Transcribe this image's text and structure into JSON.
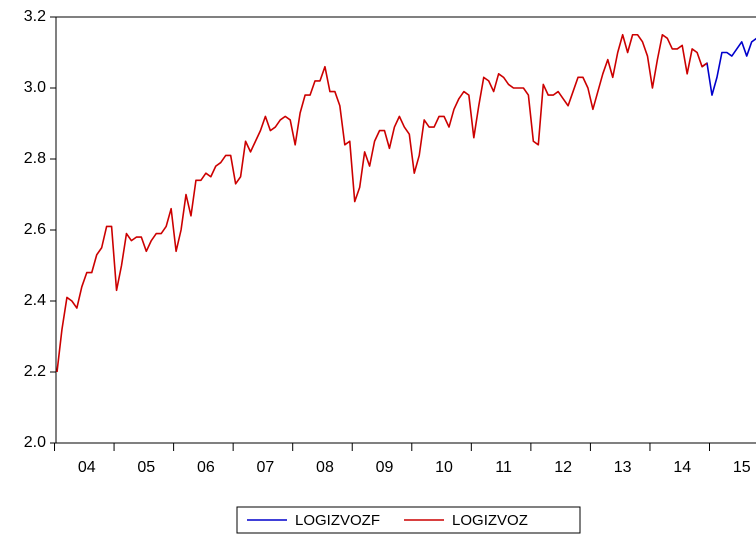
{
  "chart_data": {
    "type": "line",
    "categories": [
      null,
      null,
      null,
      null,
      null,
      null,
      "04",
      null,
      null,
      null,
      null,
      null,
      null,
      null,
      null,
      null,
      null,
      null,
      "05",
      null,
      null,
      null,
      null,
      null,
      null,
      null,
      null,
      null,
      null,
      null,
      "06",
      null,
      null,
      null,
      null,
      null,
      null,
      null,
      null,
      null,
      null,
      null,
      "07",
      null,
      null,
      null,
      null,
      null,
      null,
      null,
      null,
      null,
      null,
      null,
      "08",
      null,
      null,
      null,
      null,
      null,
      null,
      null,
      null,
      null,
      null,
      null,
      "09",
      null,
      null,
      null,
      null,
      null,
      null,
      null,
      null,
      null,
      null,
      null,
      "10",
      null,
      null,
      null,
      null,
      null,
      null,
      null,
      null,
      null,
      null,
      null,
      "11",
      null,
      null,
      null,
      null,
      null,
      null,
      null,
      null,
      null,
      null,
      null,
      "12",
      null,
      null,
      null,
      null,
      null,
      null,
      null,
      null,
      null,
      null,
      null,
      "13",
      null,
      null,
      null,
      null,
      null,
      null,
      null,
      null,
      null,
      null,
      null,
      "14",
      null,
      null,
      null,
      null,
      null,
      null,
      null,
      null,
      null,
      null,
      null,
      "15",
      null,
      null,
      null
    ],
    "series": [
      {
        "name": "LOGIZVOZF",
        "color": "#0000cc",
        "values": [
          null,
          null,
          null,
          null,
          null,
          null,
          null,
          null,
          null,
          null,
          null,
          null,
          null,
          null,
          null,
          null,
          null,
          null,
          null,
          null,
          null,
          null,
          null,
          null,
          null,
          null,
          null,
          null,
          null,
          null,
          null,
          null,
          null,
          null,
          null,
          null,
          null,
          null,
          null,
          null,
          null,
          null,
          null,
          null,
          null,
          null,
          null,
          null,
          null,
          null,
          null,
          null,
          null,
          null,
          null,
          null,
          null,
          null,
          null,
          null,
          null,
          null,
          null,
          null,
          null,
          null,
          null,
          null,
          null,
          null,
          null,
          null,
          null,
          null,
          null,
          null,
          null,
          null,
          null,
          null,
          null,
          null,
          null,
          null,
          null,
          null,
          null,
          null,
          null,
          null,
          null,
          null,
          null,
          null,
          null,
          null,
          null,
          null,
          null,
          null,
          null,
          null,
          null,
          null,
          null,
          null,
          null,
          null,
          null,
          null,
          null,
          null,
          null,
          null,
          null,
          null,
          null,
          null,
          null,
          null,
          null,
          null,
          null,
          null,
          null,
          null,
          null,
          null,
          null,
          null,
          3.06,
          3.07,
          2.98,
          3.03,
          3.1,
          3.1,
          3.09,
          3.11,
          3.13,
          3.09,
          3.13,
          3.14
        ]
      },
      {
        "name": "LOGIZVOZ",
        "color": "#cc0000",
        "values": [
          2.2,
          2.32,
          2.41,
          2.4,
          2.38,
          2.44,
          2.48,
          2.48,
          2.53,
          2.55,
          2.61,
          2.61,
          2.43,
          2.5,
          2.59,
          2.57,
          2.58,
          2.58,
          2.54,
          2.57,
          2.59,
          2.59,
          2.61,
          2.66,
          2.54,
          2.6,
          2.7,
          2.64,
          2.74,
          2.74,
          2.76,
          2.75,
          2.78,
          2.79,
          2.81,
          2.81,
          2.73,
          2.75,
          2.85,
          2.82,
          2.85,
          2.88,
          2.92,
          2.88,
          2.89,
          2.91,
          2.92,
          2.91,
          2.84,
          2.93,
          2.98,
          2.98,
          3.02,
          3.02,
          3.06,
          2.99,
          2.99,
          2.95,
          2.84,
          2.85,
          2.68,
          2.72,
          2.82,
          2.78,
          2.85,
          2.88,
          2.88,
          2.83,
          2.89,
          2.92,
          2.89,
          2.87,
          2.76,
          2.81,
          2.91,
          2.89,
          2.89,
          2.92,
          2.92,
          2.89,
          2.94,
          2.97,
          2.99,
          2.98,
          2.86,
          2.95,
          3.03,
          3.02,
          2.99,
          3.04,
          3.03,
          3.01,
          3.0,
          3.0,
          3.0,
          2.98,
          2.85,
          2.84,
          3.01,
          2.98,
          2.98,
          2.99,
          2.97,
          2.95,
          2.99,
          3.03,
          3.03,
          3.0,
          2.94,
          2.99,
          3.04,
          3.08,
          3.03,
          3.1,
          3.15,
          3.1,
          3.15,
          3.15,
          3.13,
          3.09,
          3.0,
          3.08,
          3.15,
          3.14,
          3.11,
          3.11,
          3.12,
          3.04,
          3.11,
          3.1,
          3.06,
          3.07,
          null,
          null,
          null,
          null,
          null,
          null,
          null,
          null,
          null,
          null
        ]
      }
    ],
    "ylim": [
      2.0,
      3.2
    ],
    "yticks": [
      {
        "value": 2.0,
        "label": "2.0"
      },
      2.2,
      2.4,
      2.6,
      2.8,
      {
        "value": 3.0,
        "label": "3.0"
      },
      3.2
    ],
    "grid": false
  }
}
